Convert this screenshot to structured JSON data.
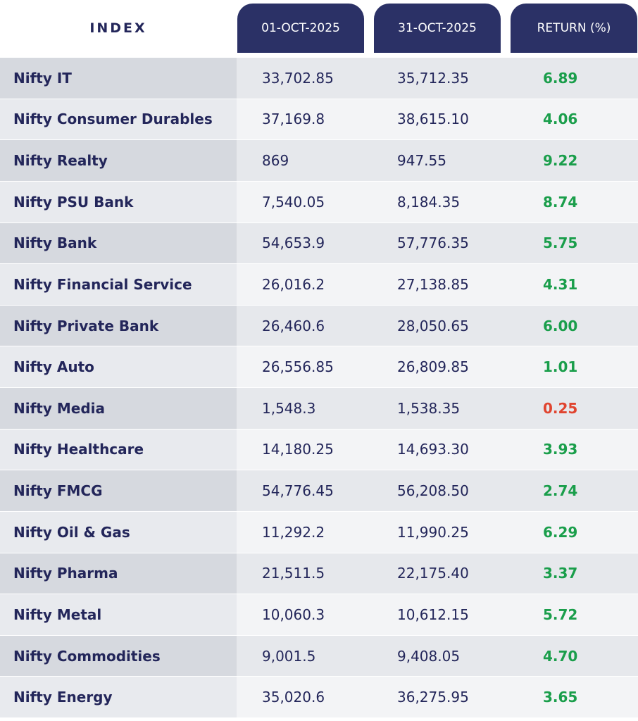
{
  "header": [
    "INDEX",
    "01-OCT-2025",
    "31-OCT-2025",
    "RETURN (%)"
  ],
  "table": {
    "rows": [
      {
        "cells": [
          "Nifty IT",
          "33,702.85",
          "35,712.35",
          "6.89"
        ],
        "return_color": "#1a9e4b"
      },
      {
        "cells": [
          "Nifty Consumer Durables",
          "37,169.8",
          "38,615.10",
          "4.06"
        ],
        "return_color": "#1a9e4b"
      },
      {
        "cells": [
          "Nifty Realty",
          "869",
          "947.55",
          "9.22"
        ],
        "return_color": "#1a9e4b"
      },
      {
        "cells": [
          "Nifty  PSU Bank",
          "7,540.05",
          "8,184.35",
          "8.74"
        ],
        "return_color": "#1a9e4b"
      },
      {
        "cells": [
          "Nifty Bank",
          "54,653.9",
          "57,776.35",
          "5.75"
        ],
        "return_color": "#1a9e4b"
      },
      {
        "cells": [
          "Nifty Financial Service",
          "26,016.2",
          "27,138.85",
          "4.31"
        ],
        "return_color": "#1a9e4b"
      },
      {
        "cells": [
          "Nifty Private Bank",
          "26,460.6",
          "28,050.65",
          "6.00"
        ],
        "return_color": "#1a9e4b"
      },
      {
        "cells": [
          "Nifty Auto",
          "26,556.85",
          "26,809.85",
          "1.01"
        ],
        "return_color": "#1a9e4b"
      },
      {
        "cells": [
          "Nifty Media",
          "1,548.3",
          "1,538.35",
          "0.25"
        ],
        "return_color": "#e0442f"
      },
      {
        "cells": [
          "Nifty Healthcare",
          "14,180.25",
          "14,693.30",
          "3.93"
        ],
        "return_color": "#1a9e4b"
      },
      {
        "cells": [
          "Nifty FMCG",
          "54,776.45",
          "56,208.50",
          "2.74"
        ],
        "return_color": "#1a9e4b"
      },
      {
        "cells": [
          "Nifty Oil & Gas",
          "11,292.2",
          "11,990.25",
          "6.29"
        ],
        "return_color": "#1a9e4b"
      },
      {
        "cells": [
          "Nifty Pharma",
          "21,511.5",
          "22,175.40",
          "3.37"
        ],
        "return_color": "#1a9e4b"
      },
      {
        "cells": [
          "Nifty Metal",
          "10,060.3",
          "10,612.15",
          "5.72"
        ],
        "return_color": "#1a9e4b"
      },
      {
        "cells": [
          "Nifty Commodities",
          "9,001.5",
          "9,408.05",
          "4.70"
        ],
        "return_color": "#1a9e4b"
      },
      {
        "cells": [
          "Nifty Energy",
          "35,020.6",
          "36,275.95",
          "3.65"
        ],
        "return_color": "#1a9e4b"
      }
    ]
  }
}
